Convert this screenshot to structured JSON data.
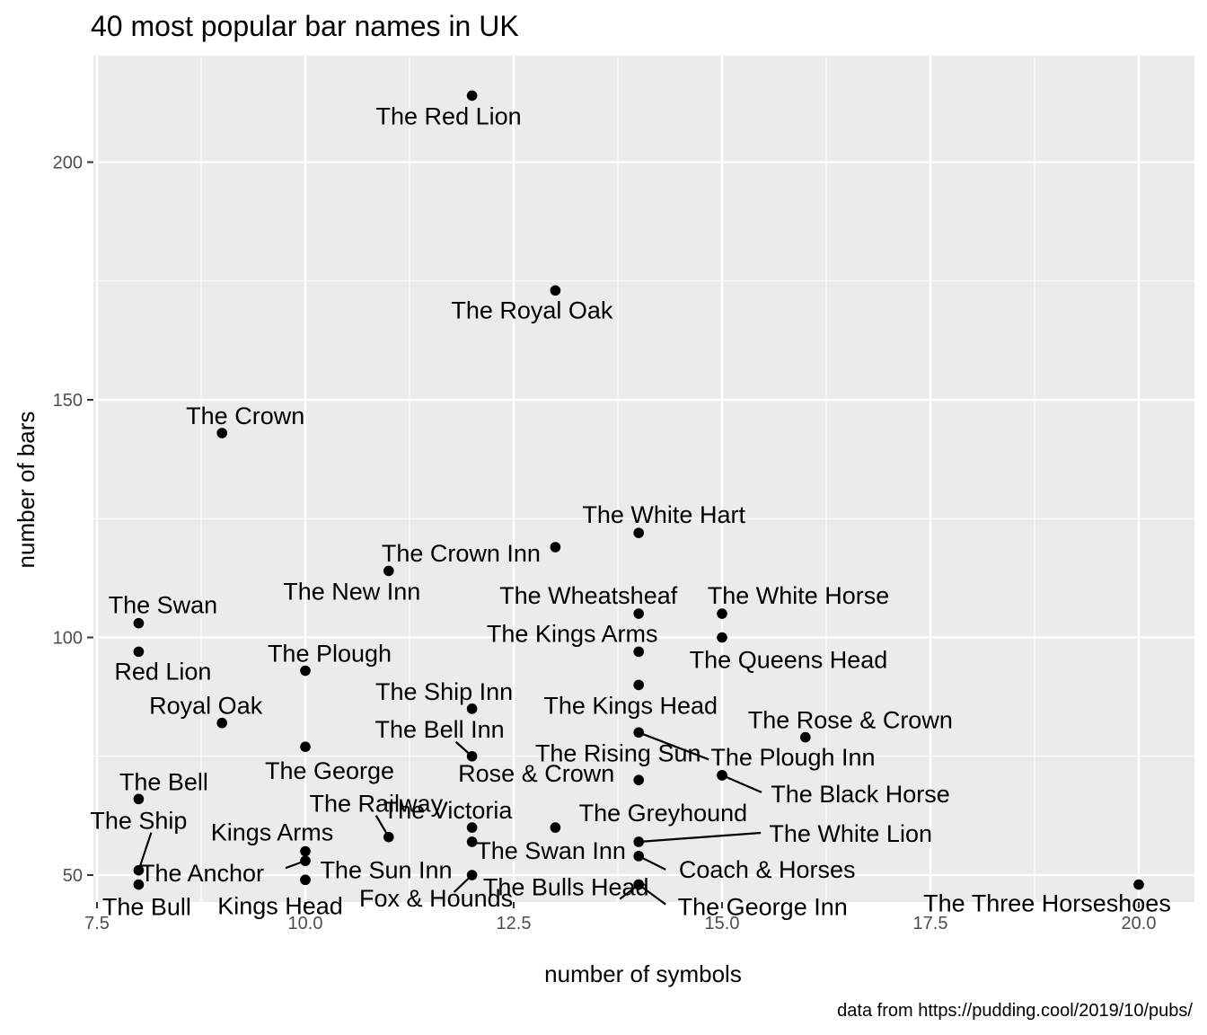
{
  "chart_data": {
    "type": "scatter",
    "title": "40 most popular bar names in UK",
    "xlabel": "number of symbols",
    "ylabel": "number of bars",
    "caption": "data from https://pudding.cool/2019/10/pubs/",
    "xlim": [
      7.5,
      20.0
    ],
    "ylim": [
      40,
      220
    ],
    "x_ticks": [
      7.5,
      10.0,
      12.5,
      15.0,
      17.5,
      20.0
    ],
    "x_tick_labels": [
      "7.5",
      "10.0",
      "12.5",
      "15.0",
      "17.5",
      "20.0"
    ],
    "y_ticks": [
      50,
      100,
      150,
      200
    ],
    "y_tick_labels": [
      "50",
      "100",
      "150",
      "200"
    ],
    "grid": true,
    "colors": {
      "panel": "#ebebeb",
      "grid": "#ffffff",
      "point": "#000000"
    },
    "points": [
      {
        "label": "The Red Lion",
        "x": 12,
        "y": 214
      },
      {
        "label": "The Royal Oak",
        "x": 13,
        "y": 173
      },
      {
        "label": "The Crown",
        "x": 9,
        "y": 143
      },
      {
        "label": "The White Hart",
        "x": 14,
        "y": 122
      },
      {
        "label": "The Crown Inn",
        "x": 13,
        "y": 119
      },
      {
        "label": "The New Inn",
        "x": 11,
        "y": 114
      },
      {
        "label": "The Swan",
        "x": 8,
        "y": 103
      },
      {
        "label": "The Wheatsheaf",
        "x": 14,
        "y": 105
      },
      {
        "label": "The White Horse",
        "x": 15,
        "y": 105
      },
      {
        "label": "The Queens Head",
        "x": 15,
        "y": 100
      },
      {
        "label": "Red Lion",
        "x": 8,
        "y": 97
      },
      {
        "label": "The Kings Arms",
        "x": 14,
        "y": 97
      },
      {
        "label": "The Plough",
        "x": 10,
        "y": 93
      },
      {
        "label": "The Kings Head",
        "x": 14,
        "y": 90
      },
      {
        "label": "The Ship Inn",
        "x": 12,
        "y": 85
      },
      {
        "label": "Royal Oak",
        "x": 9,
        "y": 82
      },
      {
        "label": "The Rising Sun",
        "x": 14,
        "y": 80
      },
      {
        "label": "The Rose & Crown",
        "x": 16,
        "y": 79
      },
      {
        "label": "The George",
        "x": 10,
        "y": 77
      },
      {
        "label": "The Bell Inn",
        "x": 12,
        "y": 75
      },
      {
        "label": "The Plough Inn",
        "x": 15,
        "y": 71
      },
      {
        "label": "Rose & Crown",
        "x": 14,
        "y": 70
      },
      {
        "label": "The Black Horse",
        "x": 15,
        "y": 71
      },
      {
        "label": "The Bell",
        "x": 8,
        "y": 66
      },
      {
        "label": "The Victoria",
        "x": 12,
        "y": 60
      },
      {
        "label": "The Greyhound",
        "x": 13,
        "y": 60
      },
      {
        "label": "The Railway",
        "x": 11,
        "y": 58
      },
      {
        "label": "The Swan Inn",
        "x": 12,
        "y": 57
      },
      {
        "label": "The White Lion",
        "x": 14,
        "y": 57
      },
      {
        "label": "Kings Arms",
        "x": 10,
        "y": 55
      },
      {
        "label": "Coach & Horses",
        "x": 14,
        "y": 54
      },
      {
        "label": "The Anchor",
        "x": 10,
        "y": 53
      },
      {
        "label": "The Ship",
        "x": 8,
        "y": 51
      },
      {
        "label": "The Sun Inn",
        "x": 10,
        "y": 49
      },
      {
        "label": "The Bulls Head",
        "x": 14,
        "y": 48
      },
      {
        "label": "Fox & Hounds",
        "x": 12,
        "y": 50
      },
      {
        "label": "Kings Head",
        "x": 10,
        "y": 49
      },
      {
        "label": "The Bull",
        "x": 8,
        "y": 48
      },
      {
        "label": "The George Inn",
        "x": 14,
        "y": 48
      },
      {
        "label": "The Three Horseshoes",
        "x": 20,
        "y": 48
      }
    ]
  }
}
